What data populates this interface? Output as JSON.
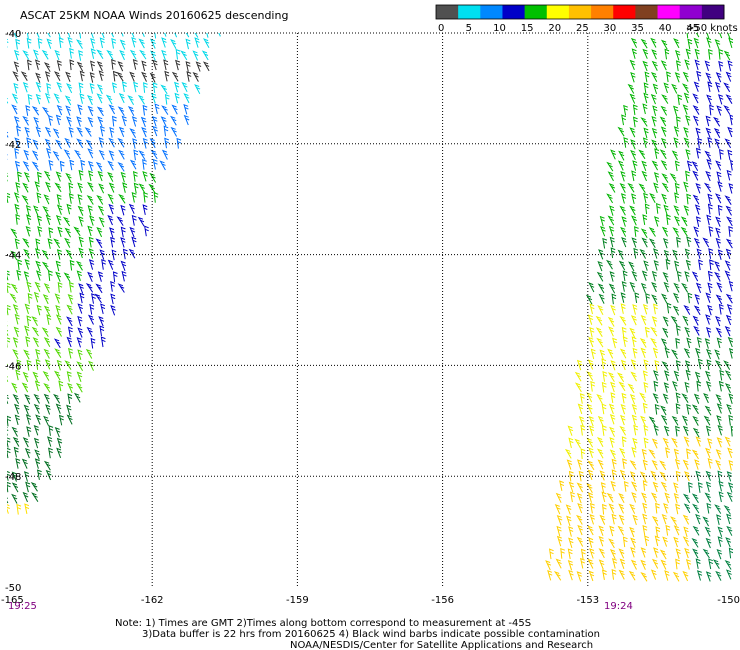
{
  "chart_data": {
    "type": "scatter",
    "title": "ASCAT 25KM NOAA Winds 20160625 descending",
    "xlim": [
      -165,
      -150
    ],
    "ylim": [
      -50,
      -40
    ],
    "x_ticks": [
      {
        "value": -165,
        "label": "-165"
      },
      {
        "value": -162,
        "label": "-162"
      },
      {
        "value": -159,
        "label": "-159"
      },
      {
        "value": -156,
        "label": "-156"
      },
      {
        "value": -153,
        "label": "-153"
      },
      {
        "value": -150,
        "label": "-150"
      }
    ],
    "y_ticks": [
      {
        "value": -40,
        "label": "-40"
      },
      {
        "value": -42,
        "label": "-42"
      },
      {
        "value": -44,
        "label": "-44"
      },
      {
        "value": -46,
        "label": "-46"
      },
      {
        "value": -48,
        "label": "-48"
      },
      {
        "value": -50,
        "label": "-50"
      }
    ],
    "grid": true,
    "grid_lon": [
      -162,
      -159,
      -156,
      -153
    ],
    "grid_lat": [
      -42,
      -44,
      -46,
      -48
    ],
    "legend": {
      "placement": "top-right",
      "unit": ">50 knots",
      "labels": [
        "0",
        "5",
        "10",
        "15",
        "20",
        "25",
        "30",
        "35",
        "40",
        "45"
      ],
      "colors": [
        "#505050",
        "#00e0f0",
        "#0088ff",
        "#0000c8",
        "#00c000",
        "#ffff00",
        "#ffc000",
        "#ff8000",
        "#ff0000",
        "#804020",
        "#ff00ff",
        "#9000d0",
        "#400080"
      ]
    },
    "swaths": [
      {
        "name": "west",
        "time": "19:25",
        "time_lon": -165,
        "bounds": [
          [
            -165,
            -40
          ],
          [
            -160.5,
            -40
          ],
          [
            -164.2,
            -48.4
          ],
          [
            -165,
            -49
          ]
        ],
        "regions": [
          {
            "lat": [
              -40,
              -41.3
            ],
            "color": "#00d8e8",
            "speed": "5-10"
          },
          {
            "lat": [
              -40.6,
              -41.0
            ],
            "color": "#303030",
            "speed": "0-5"
          },
          {
            "lat": [
              -41.3,
              -42.6
            ],
            "color": "#0070ff",
            "speed": "10-15"
          },
          {
            "lat": [
              -42.6,
              -44.5
            ],
            "color": "#00b400",
            "speed": "15-20"
          },
          {
            "lat": [
              -43.2,
              -45.8
            ],
            "color": "#0000c8",
            "speed": "15-20",
            "edge": true
          },
          {
            "lat": [
              -44.5,
              -46.5
            ],
            "color": "#50d800",
            "speed": "15-20"
          },
          {
            "lat": [
              -46.5,
              -48.5
            ],
            "color": "#006e20",
            "speed": "15-20"
          },
          {
            "lat": [
              -48.3,
              -49.5
            ],
            "color": "#ffe000",
            "speed": "20-25"
          }
        ]
      },
      {
        "name": "east",
        "time": "19:24",
        "time_lon": -152.5,
        "bounds": [
          [
            -150.5,
            -40
          ],
          [
            -150,
            -40
          ],
          [
            -150,
            -50
          ],
          [
            -153.9,
            -50
          ],
          [
            -153.4,
            -47.5
          ],
          [
            -152.8,
            -44.0
          ],
          [
            -152.0,
            -40.2
          ]
        ],
        "regions": [
          {
            "lat": [
              -40,
              -43.8
            ],
            "color": "#00b400",
            "speed": "15-20"
          },
          {
            "lat": [
              -40.5,
              -45.5
            ],
            "color": "#0000c8",
            "speed": "15-20",
            "edge": true
          },
          {
            "lat": [
              -43.8,
              -47.4
            ],
            "color": "#008020",
            "speed": "15-20"
          },
          {
            "lat": [
              -45.0,
              -47.8
            ],
            "color": "#f0f000",
            "speed": "20-25",
            "west": true
          },
          {
            "lat": [
              -47.4,
              -50
            ],
            "color": "#ffd000",
            "speed": "20-25"
          },
          {
            "lat": [
              -48.0,
              -50
            ],
            "color": "#008040",
            "speed": "15-20",
            "edge": true
          }
        ]
      }
    ]
  },
  "notes": [
    "Note: 1) Times are GMT 2)Times along bottom correspond to measurement at -45S",
    "3)Data buffer is 22 hrs from 20160625 4) Black wind barbs indicate possible contamination",
    "NOAA/NESDIS/Center for Satellite Applications and Research"
  ]
}
